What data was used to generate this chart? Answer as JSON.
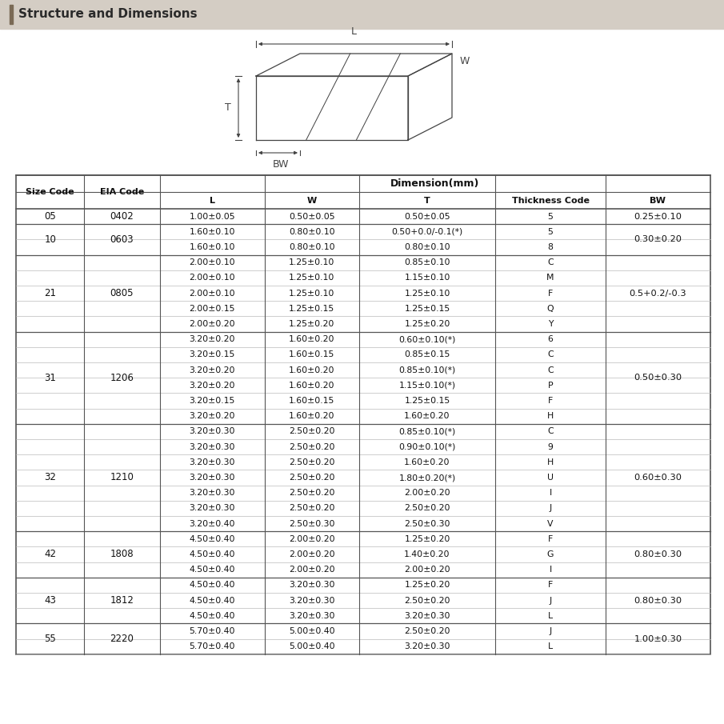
{
  "title": "Structure and Dimensions",
  "title_bar_color": "#d4cdc4",
  "title_accent_color": "#7a6a55",
  "bg_color": "#ffffff",
  "col_headers": [
    "Size Code",
    "EIA Code",
    "L",
    "W",
    "T",
    "Thickness Code",
    "BW"
  ],
  "dim_header": "Dimension(mm)",
  "rows": [
    [
      "05",
      "0402",
      "1.00±0.05",
      "0.50±0.05",
      "0.50±0.05",
      "5",
      "0.25±0.10"
    ],
    [
      "10",
      "0603",
      "1.60±0.10",
      "0.80±0.10",
      "0.50+0.0/-0.1(*)",
      "5",
      "0.30±0.20"
    ],
    [
      "10",
      "0603",
      "1.60±0.10",
      "0.80±0.10",
      "0.80±0.10",
      "8",
      "0.30±0.20"
    ],
    [
      "21",
      "0805",
      "2.00±0.10",
      "1.25±0.10",
      "0.85±0.10",
      "C",
      "0.5+0.2/-0.3"
    ],
    [
      "21",
      "0805",
      "2.00±0.10",
      "1.25±0.10",
      "1.15±0.10",
      "M",
      "0.5+0.2/-0.3"
    ],
    [
      "21",
      "0805",
      "2.00±0.10",
      "1.25±0.10",
      "1.25±0.10",
      "F",
      "0.5+0.2/-0.3"
    ],
    [
      "21",
      "0805",
      "2.00±0.15",
      "1.25±0.15",
      "1.25±0.15",
      "Q",
      "0.5+0.2/-0.3"
    ],
    [
      "21",
      "0805",
      "2.00±0.20",
      "1.25±0.20",
      "1.25±0.20",
      "Y",
      "0.5+0.2/-0.3"
    ],
    [
      "31",
      "1206",
      "3.20±0.20",
      "1.60±0.20",
      "0.60±0.10(*)",
      "6",
      "0.50±0.30"
    ],
    [
      "31",
      "1206",
      "3.20±0.15",
      "1.60±0.15",
      "0.85±0.15",
      "C",
      "0.50±0.30"
    ],
    [
      "31",
      "1206",
      "3.20±0.20",
      "1.60±0.20",
      "0.85±0.10(*)",
      "C",
      "0.50±0.30"
    ],
    [
      "31",
      "1206",
      "3.20±0.20",
      "1.60±0.20",
      "1.15±0.10(*)",
      "P",
      "0.50±0.30"
    ],
    [
      "31",
      "1206",
      "3.20±0.15",
      "1.60±0.15",
      "1.25±0.15",
      "F",
      "0.50±0.30"
    ],
    [
      "31",
      "1206",
      "3.20±0.20",
      "1.60±0.20",
      "1.60±0.20",
      "H",
      "0.50±0.30"
    ],
    [
      "32",
      "1210",
      "3.20±0.30",
      "2.50±0.20",
      "0.85±0.10(*)",
      "C",
      "0.60±0.30"
    ],
    [
      "32",
      "1210",
      "3.20±0.30",
      "2.50±0.20",
      "0.90±0.10(*)",
      "9",
      "0.60±0.30"
    ],
    [
      "32",
      "1210",
      "3.20±0.30",
      "2.50±0.20",
      "1.60±0.20",
      "H",
      "0.60±0.30"
    ],
    [
      "32",
      "1210",
      "3.20±0.30",
      "2.50±0.20",
      "1.80±0.20(*)",
      "U",
      "0.60±0.30"
    ],
    [
      "32",
      "1210",
      "3.20±0.30",
      "2.50±0.20",
      "2.00±0.20",
      "I",
      "0.60±0.30"
    ],
    [
      "32",
      "1210",
      "3.20±0.30",
      "2.50±0.20",
      "2.50±0.20",
      "J",
      "0.60±0.30"
    ],
    [
      "32",
      "1210",
      "3.20±0.40",
      "2.50±0.30",
      "2.50±0.30",
      "V",
      "0.60±0.30"
    ],
    [
      "42",
      "1808",
      "4.50±0.40",
      "2.00±0.20",
      "1.25±0.20",
      "F",
      "0.80±0.30"
    ],
    [
      "42",
      "1808",
      "4.50±0.40",
      "2.00±0.20",
      "1.40±0.20",
      "G",
      "0.80±0.30"
    ],
    [
      "42",
      "1808",
      "4.50±0.40",
      "2.00±0.20",
      "2.00±0.20",
      "I",
      "0.80±0.30"
    ],
    [
      "43",
      "1812",
      "4.50±0.40",
      "3.20±0.30",
      "1.25±0.20",
      "F",
      "0.80±0.30"
    ],
    [
      "43",
      "1812",
      "4.50±0.40",
      "3.20±0.30",
      "2.50±0.20",
      "J",
      "0.80±0.30"
    ],
    [
      "43",
      "1812",
      "4.50±0.40",
      "3.20±0.30",
      "3.20±0.30",
      "L",
      "0.80±0.30"
    ],
    [
      "55",
      "2220",
      "5.70±0.40",
      "5.00±0.40",
      "2.50±0.20",
      "J",
      "1.00±0.30"
    ],
    [
      "55",
      "2220",
      "5.70±0.40",
      "5.00±0.40",
      "3.20±0.30",
      "L",
      "1.00±0.30"
    ]
  ],
  "size_groups": [
    [
      "05",
      0,
      0
    ],
    [
      "10",
      1,
      2
    ],
    [
      "21",
      3,
      7
    ],
    [
      "31",
      8,
      13
    ],
    [
      "32",
      14,
      20
    ],
    [
      "42",
      21,
      23
    ],
    [
      "43",
      24,
      26
    ],
    [
      "55",
      27,
      28
    ]
  ],
  "eia_groups": [
    [
      "0402",
      0,
      0
    ],
    [
      "0603",
      1,
      2
    ],
    [
      "0805",
      3,
      7
    ],
    [
      "1206",
      8,
      13
    ],
    [
      "1210",
      14,
      20
    ],
    [
      "1808",
      21,
      23
    ],
    [
      "1812",
      24,
      26
    ],
    [
      "2220",
      27,
      28
    ]
  ],
  "bw_groups": [
    [
      "0.25±0.10",
      0,
      0
    ],
    [
      "0.30±0.20",
      1,
      2
    ],
    [
      "0.5+0.2/-0.3",
      3,
      7
    ],
    [
      "0.50±0.30",
      8,
      13
    ],
    [
      "0.60±0.30",
      14,
      20
    ],
    [
      "0.80±0.30",
      21,
      23
    ],
    [
      "0.80±0.30",
      24,
      26
    ],
    [
      "1.00±0.30",
      27,
      28
    ]
  ],
  "group_boundaries": [
    1,
    3,
    8,
    14,
    21,
    24,
    27
  ],
  "col_widths_rel": [
    65,
    72,
    100,
    90,
    130,
    105,
    100
  ]
}
